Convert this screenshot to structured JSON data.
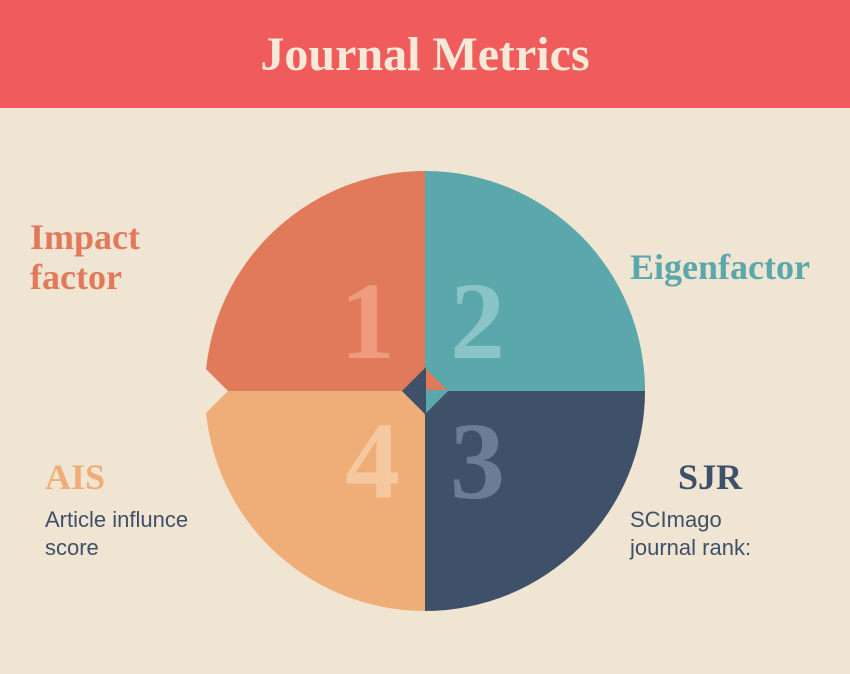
{
  "header": {
    "title": "Journal Metrics",
    "bg_color": "#f05c5c",
    "text_color": "#f5e9d8",
    "fontsize": 48
  },
  "background_color": "#f0e4d3",
  "circle": {
    "diameter": 440,
    "quadrants": [
      {
        "pos": "q1",
        "number": "1",
        "bg_color": "#e17a5a",
        "num_color": "#ee9b7f",
        "arrow_into": {
          "from": "left",
          "color": "#f0e4d3"
        }
      },
      {
        "pos": "q2",
        "number": "2",
        "bg_color": "#5aa8ac",
        "num_color": "#8bc4c6",
        "arrow_into": {
          "from": "top_q1",
          "color": "#e17a5a"
        }
      },
      {
        "pos": "q3",
        "number": "3",
        "bg_color": "#3f5168",
        "num_color": "#6b7d95",
        "arrow_into": {
          "from": "right_q2",
          "color": "#5aa8ac"
        }
      },
      {
        "pos": "q4",
        "number": "4",
        "bg_color": "#efae78",
        "num_color": "#f5c89f",
        "arrow_into": {
          "from": "bottom_q3",
          "color": "#3f5168"
        }
      }
    ]
  },
  "labels": {
    "q1": {
      "title": "Impact factor",
      "title_color": "#e17a5a",
      "sub": "",
      "sub_color": "#3f5168"
    },
    "q2": {
      "title": "Eigenfactor",
      "title_color": "#5aa8ac",
      "sub": "",
      "sub_color": "#3f5168"
    },
    "q3": {
      "title": "SJR",
      "title_color": "#3f5168",
      "sub": "SCImago journal rank:",
      "sub_color": "#3f5168"
    },
    "q4": {
      "title": "AIS",
      "title_color": "#efae78",
      "sub": "Article influnce score",
      "sub_color": "#3f5168"
    }
  },
  "label_fontsize": {
    "title": 36,
    "sub": 22
  }
}
